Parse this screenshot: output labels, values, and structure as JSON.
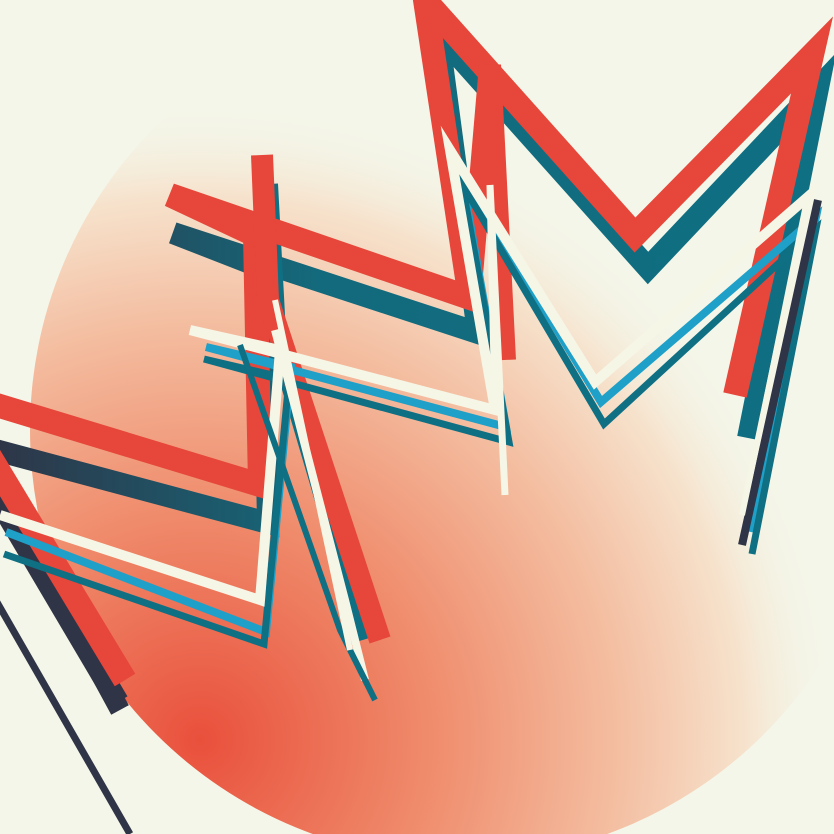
{
  "artwork": {
    "kind": "abstract geometric illustration",
    "colors": {
      "background": "#f4f6e9",
      "glow_center": "#e9503c",
      "glow_mid": "#f2a484",
      "red": "#e6473a",
      "teal": "#0f6f83",
      "navy": "#2f3446",
      "cyan": "#1ea0c8",
      "cream": "#f6f6e6"
    }
  }
}
